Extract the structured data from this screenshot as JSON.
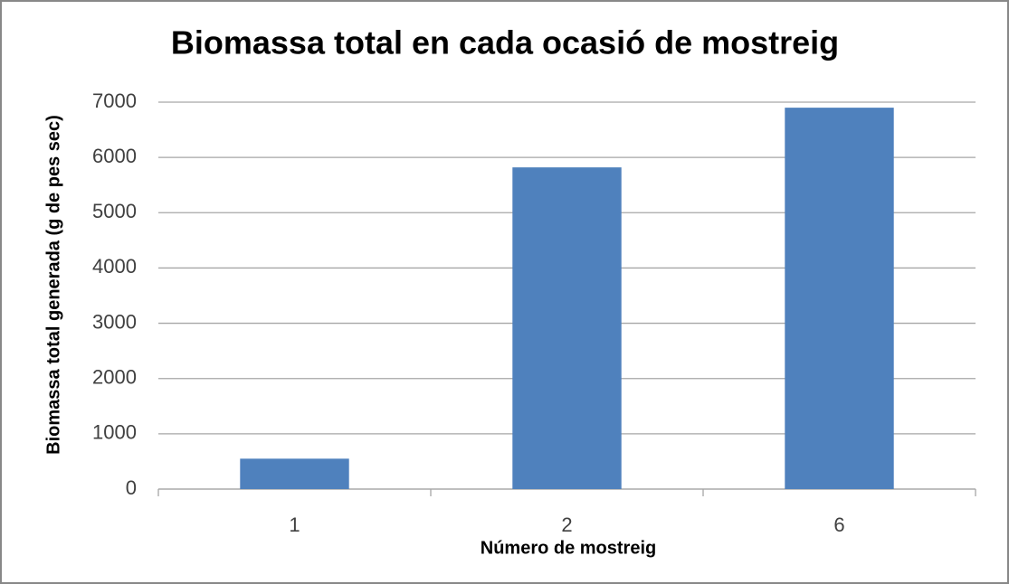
{
  "chart_data": {
    "type": "bar",
    "title": "Biomassa total en cada ocasió de mostreig",
    "x_label": "Número de mostreig",
    "y_label": "Biomassa total generada (g de pes sec)",
    "categories": [
      "1",
      "2",
      "6"
    ],
    "values": [
      550,
      5820,
      6900
    ],
    "color": "#4f81bd",
    "ylim": [
      0,
      7000
    ],
    "yticks": [
      0,
      1000,
      2000,
      3000,
      4000,
      5000,
      6000,
      7000
    ],
    "grid": true
  }
}
